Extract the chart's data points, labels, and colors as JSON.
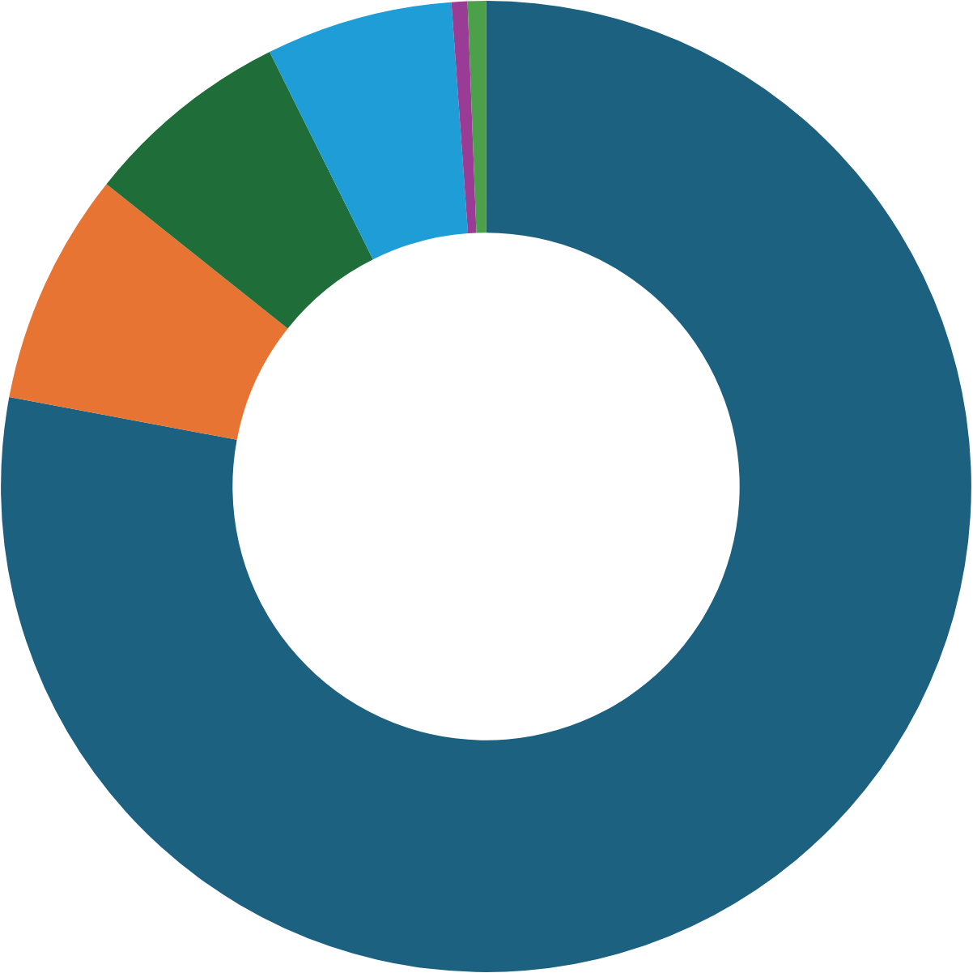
{
  "chart_data": {
    "type": "donut",
    "categories": [
      null,
      null,
      null,
      null,
      null,
      null
    ],
    "values": [
      77.95,
      7.75,
      6.94,
      6.22,
      0.53,
      0.61
    ],
    "colors": [
      "#1c6180",
      "#e87433",
      "#1f6e3a",
      "#1e9dd6",
      "#9a3b96",
      "#4da04a"
    ]
  }
}
